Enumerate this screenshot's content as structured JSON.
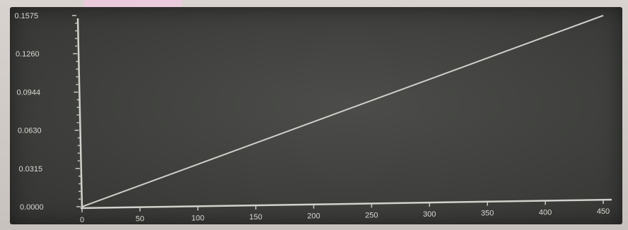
{
  "chart_data": {
    "type": "line",
    "title": "",
    "xlabel": "",
    "ylabel": "",
    "xlim": [
      0,
      450
    ],
    "ylim": [
      0,
      0.1575
    ],
    "x_ticks": [
      0,
      50,
      100,
      150,
      200,
      250,
      300,
      350,
      400,
      450
    ],
    "y_ticks": [
      0.0,
      0.0315,
      0.063,
      0.0944,
      0.126,
      0.1575
    ],
    "x_tick_labels": [
      "0",
      "50",
      "100",
      "150",
      "200",
      "250",
      "300",
      "350",
      "400",
      "450"
    ],
    "y_tick_labels": [
      "0.0000",
      "0.0315",
      "0.0630",
      "0.0944",
      "0.1260",
      "0.1575"
    ],
    "grid": false,
    "legend": "none",
    "series": [
      {
        "x": [
          0,
          450
        ],
        "y": [
          0.0,
          0.1575
        ]
      }
    ],
    "colors": {
      "background": "#3f403d",
      "axis": "#d2d2cc",
      "line": "#cfcfca",
      "text": "#d9d9d4"
    }
  }
}
